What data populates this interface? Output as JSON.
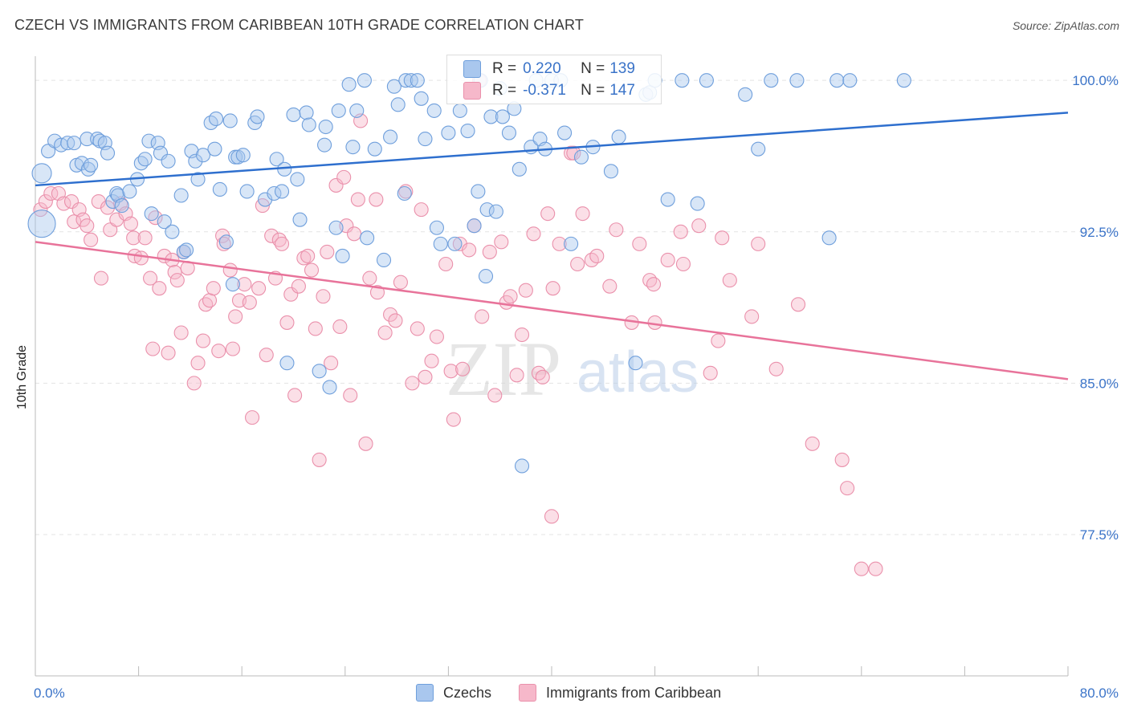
{
  "title": "CZECH VS IMMIGRANTS FROM CARIBBEAN 10TH GRADE CORRELATION CHART",
  "source": "Source: ZipAtlas.com",
  "watermark": {
    "zip": "ZIP",
    "atlas": "atlas"
  },
  "legend_top": {
    "rows": [
      {
        "r_label": "R =",
        "r_value": "0.220",
        "n_label": "N =",
        "n_value": "139"
      },
      {
        "r_label": "R =",
        "r_value": "-0.371",
        "n_label": "N =",
        "n_value": "147"
      }
    ]
  },
  "legend_bottom": [
    "Czechs",
    "Immigrants from Caribbean"
  ],
  "colors": {
    "blue_fill": "#a9c7ee",
    "blue_stroke": "#6f9fdc",
    "blue_line": "#2e6fce",
    "pink_fill": "#f6b8ca",
    "pink_stroke": "#ea90ab",
    "pink_line": "#e8739a",
    "tick_label": "#3a73c8",
    "grid": "#e3e3e3"
  },
  "chart_data": {
    "type": "scatter",
    "title": "CZECH VS IMMIGRANTS FROM CARIBBEAN 10TH GRADE CORRELATION CHART",
    "xlabel": "",
    "ylabel": "10th Grade",
    "xlim": [
      0,
      80
    ],
    "ylim": [
      70.5,
      101.2
    ],
    "x_tick_labels": [
      "0.0%",
      "80.0%"
    ],
    "y_ticks": [
      77.5,
      85.0,
      92.5,
      100.0
    ],
    "y_tick_labels": [
      "77.5%",
      "85.0%",
      "92.5%",
      "100.0%"
    ],
    "grid": true,
    "legend": "top-center and bottom",
    "series": [
      {
        "name": "Czechs",
        "color": "#6f9fdc",
        "r": 0.22,
        "n": 139,
        "trend": {
          "x": [
            0,
            80
          ],
          "y": [
            94.8,
            98.4
          ]
        },
        "points": [
          [
            0.5,
            95.4
          ],
          [
            0.5,
            92.9
          ],
          [
            1.0,
            96.5
          ],
          [
            1.5,
            97.0
          ],
          [
            2.0,
            96.8
          ],
          [
            2.5,
            96.9
          ],
          [
            3.0,
            96.9
          ],
          [
            3.2,
            95.8
          ],
          [
            3.6,
            95.9
          ],
          [
            4.0,
            97.1
          ],
          [
            4.1,
            95.6
          ],
          [
            4.3,
            95.8
          ],
          [
            4.8,
            97.1
          ],
          [
            5.0,
            97.0
          ],
          [
            5.4,
            96.9
          ],
          [
            5.6,
            96.4
          ],
          [
            6.0,
            94.0
          ],
          [
            6.3,
            94.4
          ],
          [
            6.4,
            94.3
          ],
          [
            6.7,
            93.8
          ],
          [
            7.3,
            94.5
          ],
          [
            7.9,
            95.1
          ],
          [
            8.2,
            95.9
          ],
          [
            8.5,
            96.1
          ],
          [
            8.8,
            97.0
          ],
          [
            9.0,
            93.4
          ],
          [
            9.5,
            96.9
          ],
          [
            9.7,
            96.4
          ],
          [
            10.0,
            93.0
          ],
          [
            10.3,
            96.0
          ],
          [
            10.6,
            92.5
          ],
          [
            11.3,
            94.3
          ],
          [
            11.5,
            91.5
          ],
          [
            11.7,
            91.6
          ],
          [
            12.1,
            96.5
          ],
          [
            12.4,
            96.0
          ],
          [
            12.6,
            95.1
          ],
          [
            13.0,
            96.3
          ],
          [
            13.6,
            97.9
          ],
          [
            13.9,
            96.6
          ],
          [
            14.0,
            98.1
          ],
          [
            14.3,
            94.6
          ],
          [
            14.8,
            92.0
          ],
          [
            15.1,
            98.0
          ],
          [
            15.3,
            89.9
          ],
          [
            15.5,
            96.2
          ],
          [
            15.7,
            96.2
          ],
          [
            16.1,
            96.3
          ],
          [
            16.4,
            94.5
          ],
          [
            17.0,
            97.9
          ],
          [
            17.2,
            98.2
          ],
          [
            17.8,
            94.1
          ],
          [
            18.5,
            94.4
          ],
          [
            18.7,
            96.1
          ],
          [
            19.1,
            94.5
          ],
          [
            19.3,
            95.6
          ],
          [
            19.5,
            86.0
          ],
          [
            20.0,
            98.3
          ],
          [
            20.3,
            95.1
          ],
          [
            20.5,
            93.1
          ],
          [
            21.0,
            98.4
          ],
          [
            21.2,
            97.8
          ],
          [
            22.0,
            85.6
          ],
          [
            22.4,
            96.8
          ],
          [
            22.5,
            97.7
          ],
          [
            22.8,
            84.8
          ],
          [
            23.3,
            92.7
          ],
          [
            23.5,
            98.5
          ],
          [
            23.8,
            91.3
          ],
          [
            24.3,
            99.8
          ],
          [
            24.6,
            96.7
          ],
          [
            24.9,
            98.5
          ],
          [
            25.5,
            100.0
          ],
          [
            25.7,
            92.2
          ],
          [
            26.3,
            96.6
          ],
          [
            27.0,
            91.1
          ],
          [
            27.5,
            97.2
          ],
          [
            27.8,
            99.7
          ],
          [
            28.1,
            98.8
          ],
          [
            28.6,
            94.4
          ],
          [
            28.7,
            100.0
          ],
          [
            29.1,
            100.0
          ],
          [
            29.6,
            100.0
          ],
          [
            29.9,
            99.1
          ],
          [
            30.2,
            97.1
          ],
          [
            30.9,
            98.5
          ],
          [
            31.1,
            92.7
          ],
          [
            31.4,
            91.9
          ],
          [
            32.0,
            97.4
          ],
          [
            32.5,
            91.9
          ],
          [
            32.9,
            98.5
          ],
          [
            33.5,
            97.5
          ],
          [
            34.0,
            92.8
          ],
          [
            34.3,
            94.5
          ],
          [
            34.5,
            100.0
          ],
          [
            34.9,
            90.3
          ],
          [
            35.0,
            93.6
          ],
          [
            35.3,
            98.2
          ],
          [
            35.7,
            93.5
          ],
          [
            36.0,
            99.6
          ],
          [
            36.2,
            98.2
          ],
          [
            36.7,
            97.4
          ],
          [
            37.1,
            98.6
          ],
          [
            37.5,
            95.6
          ],
          [
            37.7,
            80.9
          ],
          [
            38.4,
            96.7
          ],
          [
            38.8,
            100.0
          ],
          [
            39.1,
            97.1
          ],
          [
            39.5,
            96.6
          ],
          [
            40.0,
            100.0
          ],
          [
            40.7,
            100.0
          ],
          [
            41.0,
            97.4
          ],
          [
            41.5,
            91.9
          ],
          [
            42.3,
            96.2
          ],
          [
            43.2,
            96.7
          ],
          [
            44.6,
            95.5
          ],
          [
            45.2,
            97.2
          ],
          [
            46.5,
            86.0
          ],
          [
            47.3,
            99.3
          ],
          [
            47.6,
            99.4
          ],
          [
            48.0,
            100.0
          ],
          [
            49.0,
            94.1
          ],
          [
            50.1,
            100.0
          ],
          [
            51.3,
            93.9
          ],
          [
            52.0,
            100.0
          ],
          [
            55.0,
            99.3
          ],
          [
            56.0,
            96.6
          ],
          [
            57.0,
            100.0
          ],
          [
            59.0,
            100.0
          ],
          [
            61.5,
            92.2
          ],
          [
            62.1,
            100.0
          ],
          [
            63.1,
            100.0
          ],
          [
            67.3,
            100.0
          ]
        ]
      },
      {
        "name": "Immigrants from Caribbean",
        "color": "#ea90ab",
        "r": -0.371,
        "n": 147,
        "trend": {
          "x": [
            0,
            80
          ],
          "y": [
            92.0,
            85.2
          ]
        },
        "points": [
          [
            0.4,
            93.6
          ],
          [
            0.8,
            94.0
          ],
          [
            1.2,
            94.4
          ],
          [
            1.8,
            94.4
          ],
          [
            2.2,
            93.9
          ],
          [
            2.8,
            94.0
          ],
          [
            3.0,
            93.0
          ],
          [
            3.4,
            93.6
          ],
          [
            3.7,
            93.1
          ],
          [
            4.0,
            92.8
          ],
          [
            4.3,
            92.1
          ],
          [
            4.9,
            94.0
          ],
          [
            5.1,
            90.2
          ],
          [
            5.6,
            93.7
          ],
          [
            5.8,
            92.6
          ],
          [
            6.3,
            93.1
          ],
          [
            6.6,
            93.9
          ],
          [
            7.0,
            93.4
          ],
          [
            7.4,
            92.9
          ],
          [
            7.6,
            92.2
          ],
          [
            7.7,
            91.3
          ],
          [
            8.2,
            91.2
          ],
          [
            8.5,
            92.2
          ],
          [
            8.9,
            90.2
          ],
          [
            9.1,
            86.7
          ],
          [
            9.3,
            93.2
          ],
          [
            9.6,
            89.7
          ],
          [
            10.0,
            91.3
          ],
          [
            10.3,
            86.5
          ],
          [
            10.6,
            91.1
          ],
          [
            10.8,
            90.5
          ],
          [
            11.0,
            90.1
          ],
          [
            11.3,
            87.5
          ],
          [
            11.5,
            91.5
          ],
          [
            11.8,
            90.7
          ],
          [
            12.3,
            85.0
          ],
          [
            12.6,
            86.0
          ],
          [
            13.0,
            87.1
          ],
          [
            13.2,
            88.9
          ],
          [
            13.5,
            89.1
          ],
          [
            13.8,
            89.7
          ],
          [
            14.2,
            86.6
          ],
          [
            14.5,
            92.3
          ],
          [
            14.6,
            91.9
          ],
          [
            15.1,
            90.6
          ],
          [
            15.3,
            86.7
          ],
          [
            15.5,
            88.3
          ],
          [
            15.8,
            89.1
          ],
          [
            16.2,
            89.9
          ],
          [
            16.6,
            89.0
          ],
          [
            16.8,
            83.3
          ],
          [
            17.3,
            89.7
          ],
          [
            17.6,
            93.8
          ],
          [
            17.9,
            86.4
          ],
          [
            18.3,
            92.3
          ],
          [
            18.6,
            90.2
          ],
          [
            18.9,
            92.1
          ],
          [
            19.1,
            91.9
          ],
          [
            19.5,
            88.0
          ],
          [
            19.8,
            89.4
          ],
          [
            20.1,
            84.4
          ],
          [
            20.4,
            89.8
          ],
          [
            20.8,
            91.2
          ],
          [
            21.1,
            91.3
          ],
          [
            21.4,
            90.6
          ],
          [
            21.7,
            87.7
          ],
          [
            22.0,
            81.2
          ],
          [
            22.3,
            89.3
          ],
          [
            22.6,
            91.5
          ],
          [
            22.9,
            86.0
          ],
          [
            23.3,
            94.8
          ],
          [
            23.6,
            87.8
          ],
          [
            23.9,
            95.2
          ],
          [
            24.1,
            92.8
          ],
          [
            24.4,
            84.4
          ],
          [
            24.7,
            92.4
          ],
          [
            25.0,
            94.1
          ],
          [
            25.2,
            98.0
          ],
          [
            25.6,
            82.0
          ],
          [
            25.9,
            90.2
          ],
          [
            26.4,
            94.1
          ],
          [
            26.5,
            89.5
          ],
          [
            27.1,
            87.5
          ],
          [
            27.5,
            88.4
          ],
          [
            27.9,
            88.1
          ],
          [
            28.3,
            90.0
          ],
          [
            28.7,
            94.5
          ],
          [
            29.2,
            85.0
          ],
          [
            29.6,
            87.7
          ],
          [
            29.9,
            93.6
          ],
          [
            30.2,
            85.3
          ],
          [
            30.7,
            86.1
          ],
          [
            31.1,
            87.3
          ],
          [
            31.8,
            90.9
          ],
          [
            32.2,
            85.6
          ],
          [
            32.4,
            83.2
          ],
          [
            32.9,
            91.9
          ],
          [
            33.1,
            85.7
          ],
          [
            33.6,
            91.6
          ],
          [
            34.0,
            92.8
          ],
          [
            34.6,
            88.3
          ],
          [
            35.2,
            91.5
          ],
          [
            35.6,
            84.4
          ],
          [
            36.1,
            92.0
          ],
          [
            36.5,
            89.0
          ],
          [
            36.8,
            89.3
          ],
          [
            37.3,
            85.4
          ],
          [
            37.7,
            87.4
          ],
          [
            38.0,
            89.6
          ],
          [
            38.6,
            92.4
          ],
          [
            39.0,
            85.5
          ],
          [
            39.3,
            85.3
          ],
          [
            39.7,
            93.4
          ],
          [
            40.1,
            89.7
          ],
          [
            40.6,
            91.9
          ],
          [
            41.5,
            96.4
          ],
          [
            42.0,
            90.9
          ],
          [
            42.4,
            93.4
          ],
          [
            43.1,
            91.1
          ],
          [
            43.5,
            91.3
          ],
          [
            44.5,
            89.8
          ],
          [
            45.0,
            92.6
          ],
          [
            46.2,
            88.0
          ],
          [
            46.8,
            91.9
          ],
          [
            47.6,
            90.1
          ],
          [
            47.9,
            89.9
          ],
          [
            48.0,
            88.0
          ],
          [
            49.0,
            91.1
          ],
          [
            50.0,
            92.5
          ],
          [
            50.2,
            90.9
          ],
          [
            51.4,
            92.8
          ],
          [
            52.3,
            85.5
          ],
          [
            52.9,
            87.1
          ],
          [
            53.2,
            92.2
          ],
          [
            53.8,
            90.1
          ],
          [
            55.5,
            88.3
          ],
          [
            56.0,
            91.9
          ],
          [
            57.4,
            85.7
          ],
          [
            59.1,
            88.9
          ],
          [
            60.2,
            82.0
          ],
          [
            62.5,
            81.2
          ],
          [
            62.9,
            79.8
          ],
          [
            64.0,
            75.8
          ],
          [
            65.1,
            75.8
          ],
          [
            40.0,
            78.4
          ],
          [
            34.4,
            100.0
          ],
          [
            41.7,
            96.4
          ]
        ]
      }
    ]
  }
}
